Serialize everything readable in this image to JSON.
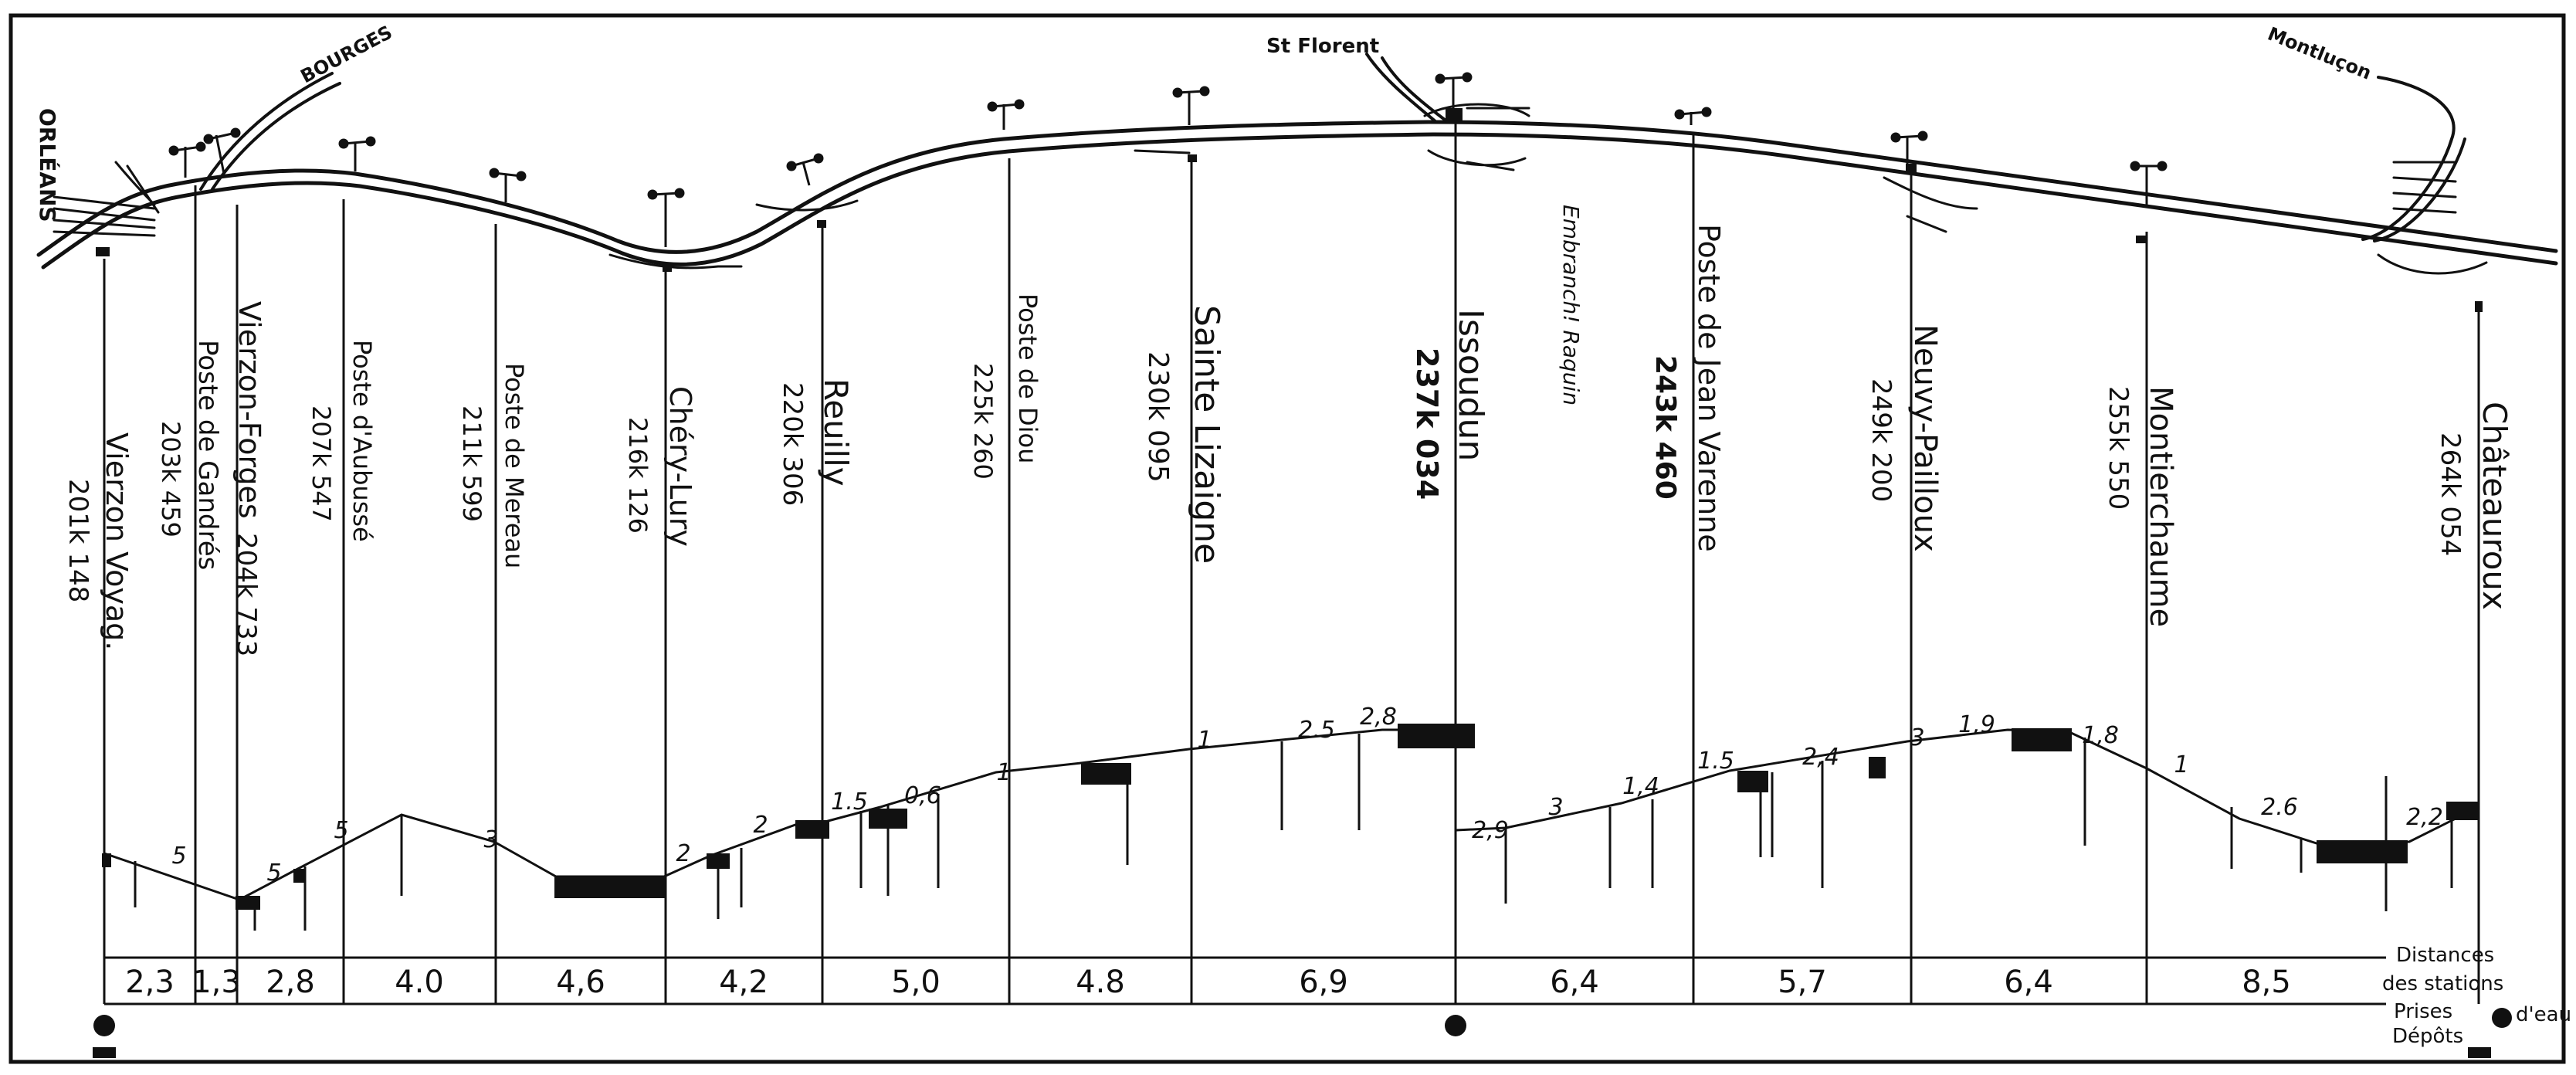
{
  "line": {
    "start_label": "ORLÉANS",
    "branches": [
      "BOURGES",
      "St Florent",
      "Montluçon"
    ]
  },
  "stations": [
    {
      "name": "Vierzon Voyag.",
      "km": "201k 148",
      "water_tower": true,
      "depot": true
    },
    {
      "name": "Poste de Gandrés",
      "km": "203k 459"
    },
    {
      "name": "Vierzon-Forges",
      "km": "204k 733"
    },
    {
      "name": "Poste d'Aubussé",
      "km": "207k 547"
    },
    {
      "name": "Poste de Mereau",
      "km": "211k 599"
    },
    {
      "name": "Chéry-Lury",
      "km": "216k 126"
    },
    {
      "name": "Reuilly",
      "km": "220k 306"
    },
    {
      "name": "Poste de Diou",
      "km": "225k 260"
    },
    {
      "name": "Sainte Lizaigne",
      "km": "230k 095"
    },
    {
      "name": "Issoudun",
      "km": "237k 034",
      "water_tower": true
    },
    {
      "name": "Embranch! Raquin",
      "km": ""
    },
    {
      "name": "Poste de Jean Varenne",
      "km": "243k 460"
    },
    {
      "name": "Neuvy-Pailloux",
      "km": "249k 200"
    },
    {
      "name": "Montierchaume",
      "km": "255k 550"
    },
    {
      "name": "Châteauroux",
      "km": "264k 054",
      "depot": true
    }
  ],
  "distances": [
    "2,3",
    "1,3",
    "2,8",
    "4.0",
    "4,6",
    "4,2",
    "5,0",
    "4.8",
    "6,9",
    "6,4",
    "5,7",
    "6,4",
    "8,5"
  ],
  "gradients": [
    "5",
    "5",
    "5",
    "3",
    "2",
    "2",
    "1.5",
    "0,6",
    "1",
    "1",
    "2.5",
    "2,8",
    "2,9",
    "3",
    "1,4",
    "1.5",
    "2,4",
    "3",
    "1,9",
    "1,8",
    "1",
    "2.6",
    "2,2"
  ],
  "legend": {
    "distances_line1": "Distances",
    "distances_line2": "des stations",
    "water_line1": "Prises",
    "water_line2": "d'eau",
    "depots": "Dépôts"
  }
}
